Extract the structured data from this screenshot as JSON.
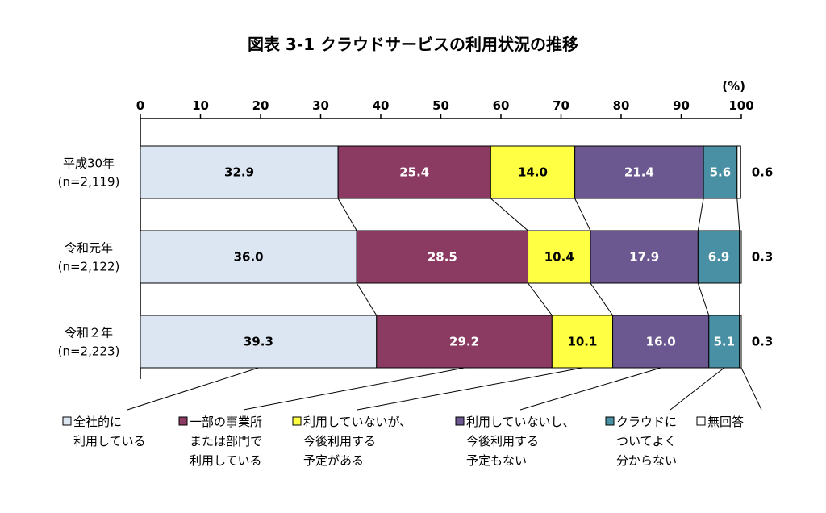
{
  "chart_data": {
    "type": "bar",
    "orientation": "horizontal",
    "stacked": true,
    "title": "図表 3-1 クラウドサービスの利用状況の推移",
    "unit_label": "(%)",
    "xlim": [
      0,
      100
    ],
    "ticks": [
      "0",
      "10",
      "20",
      "30",
      "40",
      "50",
      "60",
      "70",
      "80",
      "90",
      "100"
    ],
    "categories": [
      {
        "line1": "平成30年",
        "line2": "(n=2,119)"
      },
      {
        "line1": "令和元年",
        "line2": "(n=2,122)"
      },
      {
        "line1": "令和２年",
        "line2": "(n=2,223)"
      }
    ],
    "series": [
      {
        "name": [
          "全社的に",
          "利用している"
        ],
        "color": "#dce6f2",
        "text_color": "#000000",
        "values": [
          32.9,
          36.0,
          39.3
        ]
      },
      {
        "name": [
          "一部の事業所",
          "または部門で",
          "利用している"
        ],
        "color": "#8b3a62",
        "text_color": "#ffffff",
        "values": [
          25.4,
          28.5,
          29.2
        ]
      },
      {
        "name": [
          "利用していないが、",
          "今後利用する",
          "予定がある"
        ],
        "color": "#ffff44",
        "text_color": "#000000",
        "values": [
          14.0,
          10.4,
          10.1
        ]
      },
      {
        "name": [
          "利用していないし、",
          "今後利用する",
          "予定もない"
        ],
        "color": "#6b5891",
        "text_color": "#ffffff",
        "values": [
          21.4,
          17.9,
          16.0
        ]
      },
      {
        "name": [
          "クラウドに",
          "ついてよく",
          "分からない"
        ],
        "color": "#4a90a4",
        "text_color": "#ffffff",
        "values": [
          5.6,
          6.9,
          5.1
        ]
      },
      {
        "name": [
          "無回答"
        ],
        "color": "#ffffff",
        "text_color": "#000000",
        "values": [
          0.6,
          0.3,
          0.3
        ]
      }
    ],
    "legend_position": "bottom",
    "connector_lines": true,
    "grid": false
  }
}
